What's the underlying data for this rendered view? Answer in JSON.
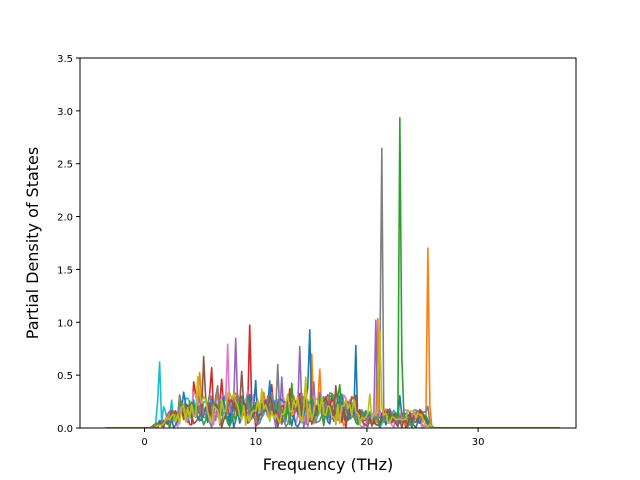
{
  "chart_data": {
    "type": "line",
    "title": "",
    "xlabel": "Frequency (THz)",
    "ylabel": "Partial Density of States",
    "xlim": [
      -5.8,
      38.8
    ],
    "ylim": [
      0,
      3.5
    ],
    "x_ticks": [
      0,
      10,
      20,
      30
    ],
    "y_ticks": [
      0.0,
      0.5,
      1.0,
      1.5,
      2.0,
      2.5,
      3.0,
      3.5
    ],
    "x_tick_labels": [
      "0",
      "10",
      "20",
      "30"
    ],
    "y_tick_labels": [
      "0.0",
      "0.5",
      "1.0",
      "1.5",
      "2.0",
      "2.5",
      "3.0",
      "3.5"
    ],
    "grid": false,
    "legend": "none",
    "background_mode": {
      "x_range": [
        0.5,
        26.0
      ],
      "description": "dense overlapping spectra, baseline ~0.05-0.3"
    },
    "series": [
      {
        "color": "#17becf",
        "peaks": [
          [
            1.3,
            0.84
          ],
          [
            1.8,
            0.34
          ],
          [
            2.4,
            0.3
          ],
          [
            4.5,
            0.45
          ]
        ]
      },
      {
        "color": "#d62728",
        "peaks": [
          [
            4.5,
            0.74
          ],
          [
            6.0,
            0.65
          ],
          [
            7.0,
            0.62
          ],
          [
            9.5,
            1.11
          ],
          [
            11.5,
            0.55
          ],
          [
            13.0,
            0.5
          ]
        ]
      },
      {
        "color": "#ff7f0e",
        "peaks": [
          [
            5.0,
            0.6
          ],
          [
            6.5,
            0.55
          ],
          [
            15.0,
            0.8
          ],
          [
            15.7,
            0.75
          ],
          [
            21.0,
            1.07
          ],
          [
            25.5,
            1.76
          ]
        ]
      },
      {
        "color": "#9467bd",
        "peaks": [
          [
            8.2,
            0.85
          ],
          [
            12.3,
            0.55
          ],
          [
            14.0,
            0.88
          ],
          [
            15.2,
            0.45
          ],
          [
            20.8,
            1.02
          ]
        ]
      },
      {
        "color": "#e377c2",
        "peaks": [
          [
            7.5,
            0.82
          ],
          [
            9.2,
            0.6
          ],
          [
            11.5,
            0.45
          ]
        ]
      },
      {
        "color": "#1f77b4",
        "peaks": [
          [
            3.5,
            0.35
          ],
          [
            10.0,
            0.45
          ],
          [
            11.2,
            0.6
          ],
          [
            14.8,
            1.25
          ],
          [
            19.0,
            0.78
          ],
          [
            23.0,
            0.35
          ]
        ]
      },
      {
        "color": "#2ca02c",
        "peaks": [
          [
            13.3,
            0.57
          ],
          [
            15.7,
            0.4
          ],
          [
            17.5,
            0.55
          ],
          [
            23.0,
            3.35
          ]
        ]
      },
      {
        "color": "#7f7f7f",
        "peaks": [
          [
            6.5,
            0.68
          ],
          [
            12.0,
            0.62
          ],
          [
            18.2,
            0.42
          ],
          [
            21.3,
            3.02
          ],
          [
            25.4,
            0.35
          ]
        ]
      },
      {
        "color": "#8c564b",
        "peaks": [
          [
            5.3,
            0.7
          ],
          [
            8.8,
            0.72
          ],
          [
            12.8,
            0.45
          ],
          [
            17.2,
            0.4
          ]
        ]
      },
      {
        "color": "#bcbd22",
        "peaks": [
          [
            4.8,
            0.5
          ],
          [
            10.5,
            0.42
          ],
          [
            14.5,
            0.48
          ],
          [
            20.2,
            0.43
          ],
          [
            21.2,
            1.05
          ]
        ]
      }
    ]
  }
}
